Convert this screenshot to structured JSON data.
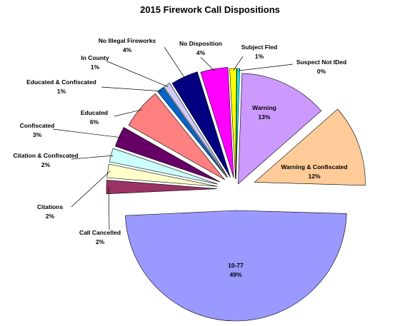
{
  "chart_data": {
    "type": "pie",
    "title": "2015 Firework Call Dispositions",
    "exploded": true,
    "slices": [
      {
        "label": "Warning",
        "value": 13,
        "display": "13%",
        "color": "#cc99ff"
      },
      {
        "label": "Warning & Confiscated",
        "value": 12,
        "display": "12%",
        "color": "#ffcc99"
      },
      {
        "label": "10-77",
        "value": 49,
        "display": "49%",
        "color": "#9999ff"
      },
      {
        "label": "Call Cancelled",
        "value": 2,
        "display": "2%",
        "color": "#993366"
      },
      {
        "label": "Citations",
        "value": 2,
        "display": "2%",
        "color": "#ffffcc"
      },
      {
        "label": "Citation & Confiscated",
        "value": 2,
        "display": "2%",
        "color": "#ccffff"
      },
      {
        "label": "Confiscated",
        "value": 3,
        "display": "3%",
        "color": "#660066"
      },
      {
        "label": "Educated",
        "value": 6,
        "display": "6%",
        "color": "#ff8080"
      },
      {
        "label": "Educated & Confiscated",
        "value": 1,
        "display": "1%",
        "color": "#0066cc"
      },
      {
        "label": "In County",
        "value": 1,
        "display": "1%",
        "color": "#ccccff"
      },
      {
        "label": "No Illegal Fireworks",
        "value": 4,
        "display": "4%",
        "color": "#000080"
      },
      {
        "label": "No Disposition",
        "value": 4,
        "display": "4%",
        "color": "#ff00ff"
      },
      {
        "label": "Subject Fled",
        "value": 1,
        "display": "1%",
        "color": "#ffff00"
      },
      {
        "label": "Suspect Not IDed",
        "value": 0,
        "display": "0%",
        "color": "#00ffff"
      }
    ]
  }
}
